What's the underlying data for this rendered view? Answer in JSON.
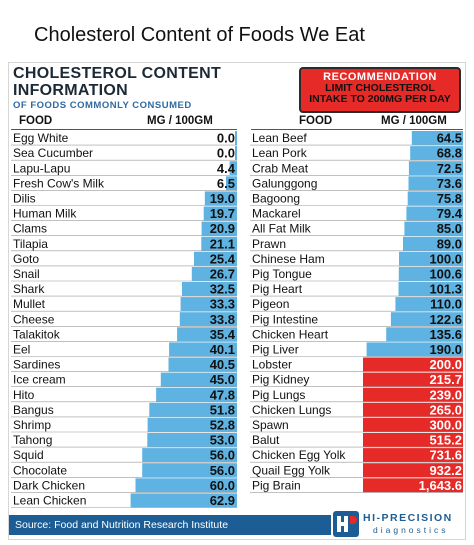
{
  "page_title": "Cholesterol Content of Foods We Eat",
  "header": {
    "title_line1": "CHOLESTEROL CONTENT",
    "title_line2": "INFORMATION",
    "subtitle": "OF FOODS COMMONLY CONSUMED"
  },
  "recommendation": {
    "heading": "RECOMMENDATION",
    "line1": "LIMIT CHOLESTEROL",
    "line2": "INTAKE TO 200MG PER DAY"
  },
  "columns": {
    "food": "FOOD",
    "unit": "MG / 100GM"
  },
  "colors": {
    "bar_blue": "#5fb3e2",
    "bar_red": "#e52a27",
    "source_bar": "#1d5d95"
  },
  "source": "Source: Food and Nutrition Research Institute",
  "logo": {
    "name": "HI-PRECISION",
    "sub": "diagnostics",
    "mark": "HP"
  },
  "chart_data": [
    {
      "type": "bar",
      "orientation": "horizontal",
      "unit": "MG / 100GM",
      "categories": [
        "Egg White",
        "Sea Cucumber",
        "Lapu-Lapu",
        "Fresh Cow's Milk",
        "Dilis",
        "Human Milk",
        "Clams",
        "Tilapia",
        "Goto",
        "Snail",
        "Shark",
        "Mullet",
        "Cheese",
        "Talakitok",
        "Eel",
        "Sardines",
        "Ice cream",
        "Hito",
        "Bangus",
        "Shrimp",
        "Tahong",
        "Squid",
        "Chocolate",
        "Dark Chicken",
        "Lean Chicken"
      ],
      "values": [
        0.0,
        0.0,
        4.4,
        6.5,
        19.0,
        19.7,
        20.9,
        21.1,
        25.4,
        26.7,
        32.5,
        33.3,
        33.8,
        35.4,
        40.1,
        40.5,
        45.0,
        47.8,
        51.8,
        52.8,
        53.0,
        56.0,
        56.0,
        60.0,
        62.9
      ],
      "labels": [
        "0.0",
        "0.0",
        "4.4",
        "6.5",
        "19.0",
        "19.7",
        "20.9",
        "21.1",
        "25.4",
        "26.7",
        "32.5",
        "33.3",
        "33.8",
        "35.4",
        "40.1",
        "40.5",
        "45.0",
        "47.8",
        "51.8",
        "52.8",
        "53.0",
        "56.0",
        "56.0",
        "60.0",
        "62.9"
      ]
    },
    {
      "type": "bar",
      "orientation": "horizontal",
      "unit": "MG / 100GM",
      "categories": [
        "Lean Beef",
        "Lean Pork",
        "Crab Meat",
        "Galunggong",
        "Bagoong",
        "Mackarel",
        "All Fat Milk",
        "Prawn",
        "Chinese Ham",
        "Pig Tongue",
        "Pig Heart",
        "Pigeon",
        "Pig Intestine",
        "Chicken Heart",
        "Pig Liver",
        "Lobster",
        "Pig Kidney",
        "Pig Lungs",
        "Chicken Lungs",
        "Spawn",
        "Balut",
        "Chicken Egg Yolk",
        "Quail Egg Yolk",
        "Pig Brain"
      ],
      "values": [
        64.5,
        68.8,
        72.5,
        73.6,
        75.8,
        79.4,
        85.0,
        89.0,
        100.0,
        100.6,
        101.3,
        110.0,
        122.6,
        135.6,
        190.0,
        200.0,
        215.7,
        239.0,
        265.0,
        300.0,
        515.2,
        731.6,
        932.2,
        1643.6
      ],
      "labels": [
        "64.5",
        "68.8",
        "72.5",
        "73.6",
        "75.8",
        "79.4",
        "85.0",
        "89.0",
        "100.0",
        "100.6",
        "101.3",
        "110.0",
        "122.6",
        "135.6",
        "190.0",
        "200.0",
        "215.7",
        "239.0",
        "265.0",
        "300.0",
        "515.2",
        "731.6",
        "932.2",
        "1,643.6"
      ],
      "highlight_threshold": 200
    }
  ]
}
